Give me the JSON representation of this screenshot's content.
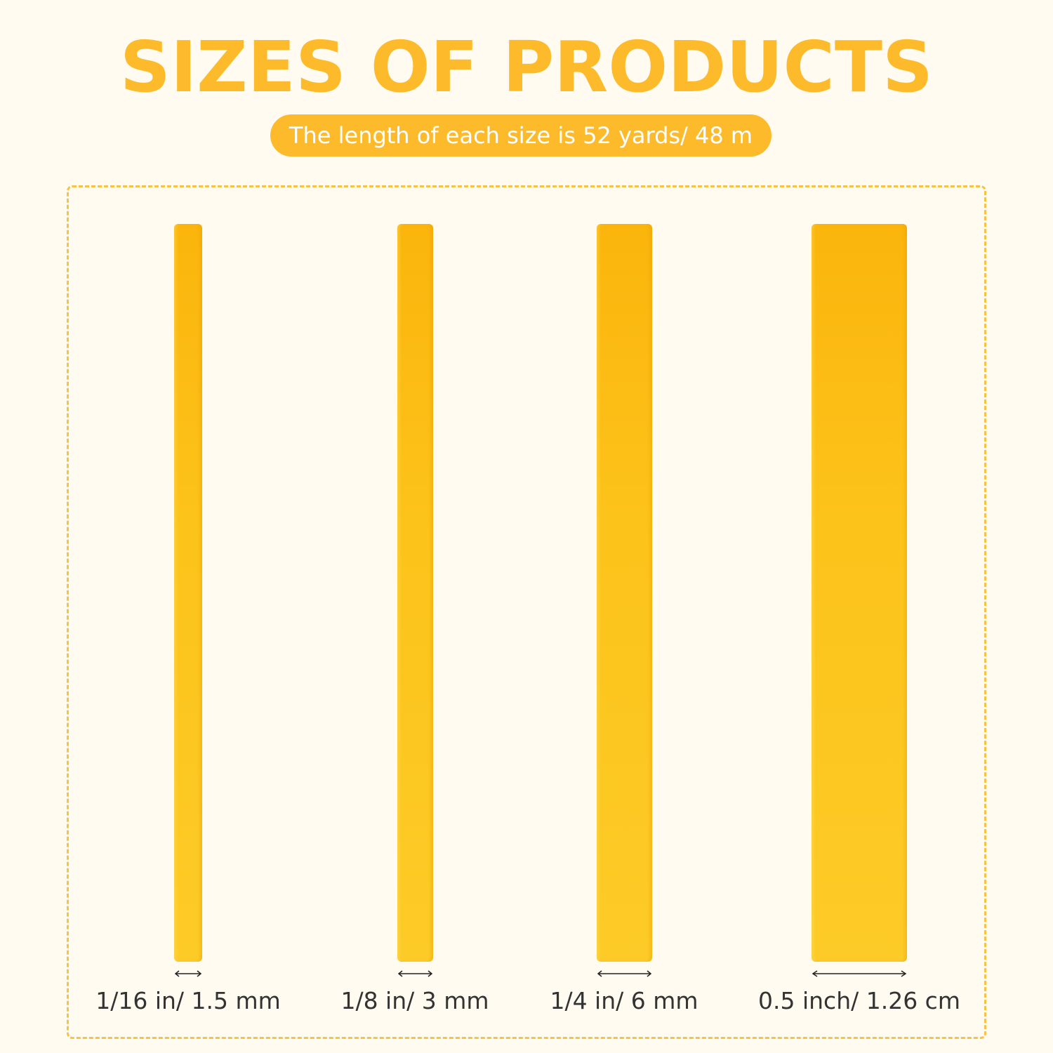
{
  "header": {
    "title": "SIZES OF PRODUCTS",
    "subtitle": "The length of each size is 52 yards/ 48 m"
  },
  "colors": {
    "accent": "#fdbb2c",
    "background": "#fffbf0",
    "strip": "#fcc31a",
    "label_text": "#333333"
  },
  "products": [
    {
      "size_label": "1/16 in/ 1.5 mm"
    },
    {
      "size_label": "1/8 in/ 3 mm"
    },
    {
      "size_label": "1/4 in/ 6 mm"
    },
    {
      "size_label": "0.5 inch/ 1.26 cm"
    }
  ]
}
